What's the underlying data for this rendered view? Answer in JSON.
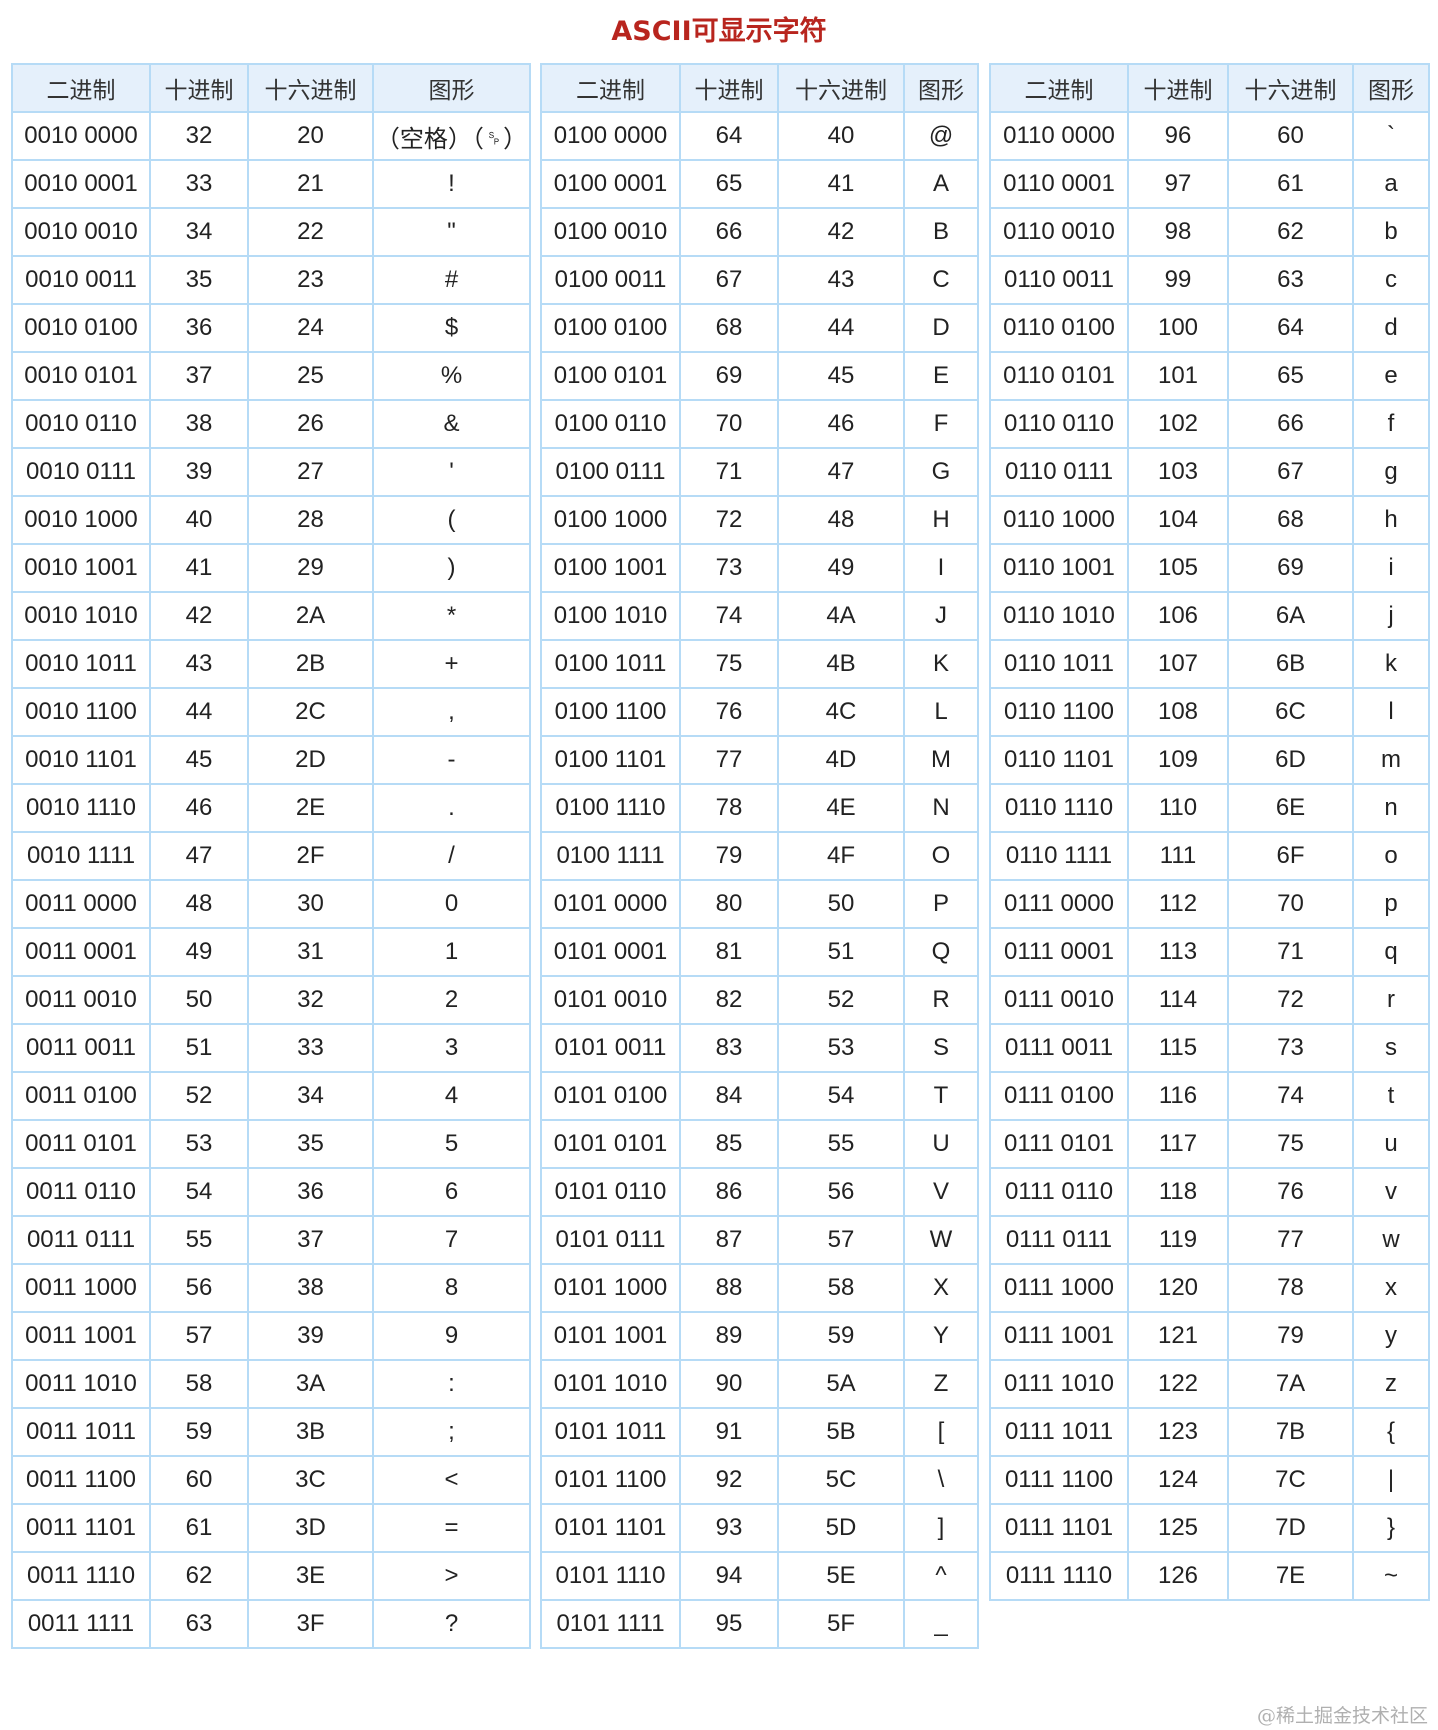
{
  "title": "ASCII可显示字符",
  "headers": [
    "二进制",
    "十进制",
    "十六进制",
    "图形"
  ],
  "watermark": "@稀土掘金技术社区",
  "colors": {
    "title": "#b8251e",
    "border": "#b6dbf6",
    "header_bg": "#e5f0fb"
  },
  "tables": [
    {
      "rows": [
        [
          "0010 0000",
          "32",
          "20",
          "（空格）（␠）"
        ],
        [
          "0010 0001",
          "33",
          "21",
          "!"
        ],
        [
          "0010 0010",
          "34",
          "22",
          "\""
        ],
        [
          "0010 0011",
          "35",
          "23",
          "#"
        ],
        [
          "0010 0100",
          "36",
          "24",
          "$"
        ],
        [
          "0010 0101",
          "37",
          "25",
          "%"
        ],
        [
          "0010 0110",
          "38",
          "26",
          "&"
        ],
        [
          "0010 0111",
          "39",
          "27",
          "'"
        ],
        [
          "0010 1000",
          "40",
          "28",
          "("
        ],
        [
          "0010 1001",
          "41",
          "29",
          ")"
        ],
        [
          "0010 1010",
          "42",
          "2A",
          "*"
        ],
        [
          "0010 1011",
          "43",
          "2B",
          "+"
        ],
        [
          "0010 1100",
          "44",
          "2C",
          ","
        ],
        [
          "0010 1101",
          "45",
          "2D",
          "-"
        ],
        [
          "0010 1110",
          "46",
          "2E",
          "."
        ],
        [
          "0010 1111",
          "47",
          "2F",
          "/"
        ],
        [
          "0011 0000",
          "48",
          "30",
          "0"
        ],
        [
          "0011 0001",
          "49",
          "31",
          "1"
        ],
        [
          "0011 0010",
          "50",
          "32",
          "2"
        ],
        [
          "0011 0011",
          "51",
          "33",
          "3"
        ],
        [
          "0011 0100",
          "52",
          "34",
          "4"
        ],
        [
          "0011 0101",
          "53",
          "35",
          "5"
        ],
        [
          "0011 0110",
          "54",
          "36",
          "6"
        ],
        [
          "0011 0111",
          "55",
          "37",
          "7"
        ],
        [
          "0011 1000",
          "56",
          "38",
          "8"
        ],
        [
          "0011 1001",
          "57",
          "39",
          "9"
        ],
        [
          "0011 1010",
          "58",
          "3A",
          ":"
        ],
        [
          "0011 1011",
          "59",
          "3B",
          ";"
        ],
        [
          "0011 1100",
          "60",
          "3C",
          "<"
        ],
        [
          "0011 1101",
          "61",
          "3D",
          "="
        ],
        [
          "0011 1110",
          "62",
          "3E",
          ">"
        ],
        [
          "0011 1111",
          "63",
          "3F",
          "?"
        ]
      ]
    },
    {
      "rows": [
        [
          "0100 0000",
          "64",
          "40",
          "@"
        ],
        [
          "0100 0001",
          "65",
          "41",
          "A"
        ],
        [
          "0100 0010",
          "66",
          "42",
          "B"
        ],
        [
          "0100 0011",
          "67",
          "43",
          "C"
        ],
        [
          "0100 0100",
          "68",
          "44",
          "D"
        ],
        [
          "0100 0101",
          "69",
          "45",
          "E"
        ],
        [
          "0100 0110",
          "70",
          "46",
          "F"
        ],
        [
          "0100 0111",
          "71",
          "47",
          "G"
        ],
        [
          "0100 1000",
          "72",
          "48",
          "H"
        ],
        [
          "0100 1001",
          "73",
          "49",
          "I"
        ],
        [
          "0100 1010",
          "74",
          "4A",
          "J"
        ],
        [
          "0100 1011",
          "75",
          "4B",
          "K"
        ],
        [
          "0100 1100",
          "76",
          "4C",
          "L"
        ],
        [
          "0100 1101",
          "77",
          "4D",
          "M"
        ],
        [
          "0100 1110",
          "78",
          "4E",
          "N"
        ],
        [
          "0100 1111",
          "79",
          "4F",
          "O"
        ],
        [
          "0101 0000",
          "80",
          "50",
          "P"
        ],
        [
          "0101 0001",
          "81",
          "51",
          "Q"
        ],
        [
          "0101 0010",
          "82",
          "52",
          "R"
        ],
        [
          "0101 0011",
          "83",
          "53",
          "S"
        ],
        [
          "0101 0100",
          "84",
          "54",
          "T"
        ],
        [
          "0101 0101",
          "85",
          "55",
          "U"
        ],
        [
          "0101 0110",
          "86",
          "56",
          "V"
        ],
        [
          "0101 0111",
          "87",
          "57",
          "W"
        ],
        [
          "0101 1000",
          "88",
          "58",
          "X"
        ],
        [
          "0101 1001",
          "89",
          "59",
          "Y"
        ],
        [
          "0101 1010",
          "90",
          "5A",
          "Z"
        ],
        [
          "0101 1011",
          "91",
          "5B",
          "["
        ],
        [
          "0101 1100",
          "92",
          "5C",
          "\\"
        ],
        [
          "0101 1101",
          "93",
          "5D",
          "]"
        ],
        [
          "0101 1110",
          "94",
          "5E",
          "^"
        ],
        [
          "0101 1111",
          "95",
          "5F",
          "_"
        ]
      ]
    },
    {
      "rows": [
        [
          "0110 0000",
          "96",
          "60",
          "`"
        ],
        [
          "0110 0001",
          "97",
          "61",
          "a"
        ],
        [
          "0110 0010",
          "98",
          "62",
          "b"
        ],
        [
          "0110 0011",
          "99",
          "63",
          "c"
        ],
        [
          "0110 0100",
          "100",
          "64",
          "d"
        ],
        [
          "0110 0101",
          "101",
          "65",
          "e"
        ],
        [
          "0110 0110",
          "102",
          "66",
          "f"
        ],
        [
          "0110 0111",
          "103",
          "67",
          "g"
        ],
        [
          "0110 1000",
          "104",
          "68",
          "h"
        ],
        [
          "0110 1001",
          "105",
          "69",
          "i"
        ],
        [
          "0110 1010",
          "106",
          "6A",
          "j"
        ],
        [
          "0110 1011",
          "107",
          "6B",
          "k"
        ],
        [
          "0110 1100",
          "108",
          "6C",
          "l"
        ],
        [
          "0110 1101",
          "109",
          "6D",
          "m"
        ],
        [
          "0110 1110",
          "110",
          "6E",
          "n"
        ],
        [
          "0110 1111",
          "111",
          "6F",
          "o"
        ],
        [
          "0111 0000",
          "112",
          "70",
          "p"
        ],
        [
          "0111 0001",
          "113",
          "71",
          "q"
        ],
        [
          "0111 0010",
          "114",
          "72",
          "r"
        ],
        [
          "0111 0011",
          "115",
          "73",
          "s"
        ],
        [
          "0111 0100",
          "116",
          "74",
          "t"
        ],
        [
          "0111 0101",
          "117",
          "75",
          "u"
        ],
        [
          "0111 0110",
          "118",
          "76",
          "v"
        ],
        [
          "0111 0111",
          "119",
          "77",
          "w"
        ],
        [
          "0111 1000",
          "120",
          "78",
          "x"
        ],
        [
          "0111 1001",
          "121",
          "79",
          "y"
        ],
        [
          "0111 1010",
          "122",
          "7A",
          "z"
        ],
        [
          "0111 1011",
          "123",
          "7B",
          "{"
        ],
        [
          "0111 1100",
          "124",
          "7C",
          "|"
        ],
        [
          "0111 1101",
          "125",
          "7D",
          "}"
        ],
        [
          "0111 1110",
          "126",
          "7E",
          "~"
        ]
      ]
    }
  ]
}
